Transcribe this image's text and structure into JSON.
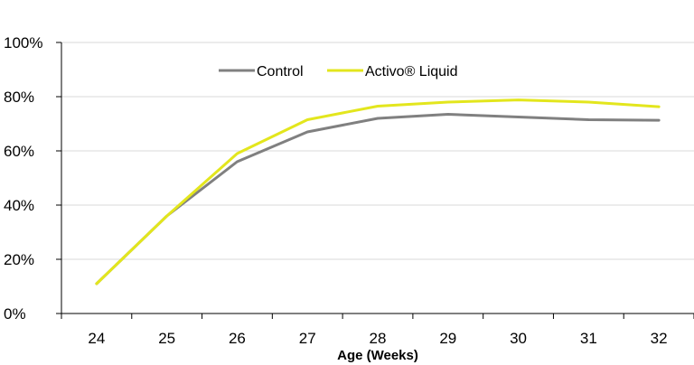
{
  "chart_data": {
    "type": "line",
    "x": [
      24,
      25,
      26,
      27,
      28,
      29,
      30,
      31,
      32
    ],
    "xtick_labels": [
      "24",
      "25",
      "26",
      "27",
      "28",
      "29",
      "30",
      "31",
      "32"
    ],
    "xlabel": "Age (Weeks)",
    "ylabel": "",
    "ylim": [
      0,
      100
    ],
    "ytick_values": [
      0,
      20,
      40,
      60,
      80,
      100
    ],
    "ytick_labels": [
      "0%",
      "20%",
      "40%",
      "60%",
      "80%",
      "100%"
    ],
    "grid": true,
    "legend_position": "top-center",
    "series": [
      {
        "name": "Control",
        "color": "#808080",
        "values": [
          11,
          36,
          56,
          67,
          72,
          73.5,
          72.5,
          71.5,
          71.3
        ]
      },
      {
        "name": "Activo® Liquid",
        "color": "#e3e61d",
        "values": [
          11,
          36,
          59,
          71.5,
          76.5,
          78,
          78.8,
          78,
          76.3
        ]
      }
    ]
  }
}
